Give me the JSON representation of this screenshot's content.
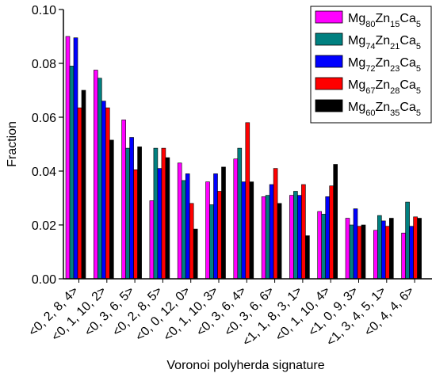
{
  "chart_data": {
    "type": "bar",
    "xlabel": "Voronoi polyherda signature",
    "ylabel": "Fraction",
    "categories": [
      "<0, 2, 8, 4>",
      "<0, 1, 10, 2>",
      "<0, 3, 6, 5>",
      "<0, 2, 8, 5>",
      "<0, 0, 12, 0>",
      "<0, 1, 10, 3>",
      "<0, 3, 6, 4>",
      "<0, 3, 6, 6>",
      "<1, 1, 8, 3, 1>",
      "<0, 1, 10, 4>",
      "<1, 0, 9, 3>",
      "<1, 3, 4, 5, 1>",
      "<0, 4, 4, 6>"
    ],
    "series": [
      {
        "name": "Mg80Zn15Ca5",
        "color": "#ff00ff",
        "values": [
          0.09,
          0.0775,
          0.059,
          0.029,
          0.043,
          0.036,
          0.0445,
          0.0305,
          0.031,
          0.025,
          0.0225,
          0.018,
          0.017
        ]
      },
      {
        "name": "Mg74Zn21Ca5",
        "color": "#008080",
        "values": [
          0.079,
          0.0745,
          0.0485,
          0.0485,
          0.0365,
          0.0275,
          0.0485,
          0.031,
          0.0325,
          0.024,
          0.02,
          0.0235,
          0.0285
        ]
      },
      {
        "name": "Mg72Zn23Ca5",
        "color": "#0000ff",
        "values": [
          0.0895,
          0.066,
          0.0525,
          0.041,
          0.039,
          0.039,
          0.036,
          0.035,
          0.031,
          0.0305,
          0.026,
          0.0215,
          0.0195
        ]
      },
      {
        "name": "Mg67Zn28Ca5",
        "color": "#ff0000",
        "values": [
          0.0635,
          0.0635,
          0.0405,
          0.0485,
          0.028,
          0.0325,
          0.058,
          0.041,
          0.035,
          0.0345,
          0.0195,
          0.0195,
          0.023
        ]
      },
      {
        "name": "Mg60Zn35Ca5",
        "color": "#000000",
        "values": [
          0.07,
          0.0515,
          0.049,
          0.045,
          0.0185,
          0.0415,
          0.036,
          0.028,
          0.016,
          0.0425,
          0.02,
          0.0225,
          0.0225
        ]
      }
    ],
    "ylim": [
      0,
      0.1
    ],
    "yticks": [
      {
        "value": 0,
        "label": "0.00"
      },
      {
        "value": 0.02,
        "label": "0.02"
      },
      {
        "value": 0.04,
        "label": "0.04"
      },
      {
        "value": 0.06,
        "label": "0.06"
      },
      {
        "value": 0.08,
        "label": "0.08"
      },
      {
        "value": 0.1,
        "label": "0.10"
      }
    ],
    "legend": "upper right"
  }
}
